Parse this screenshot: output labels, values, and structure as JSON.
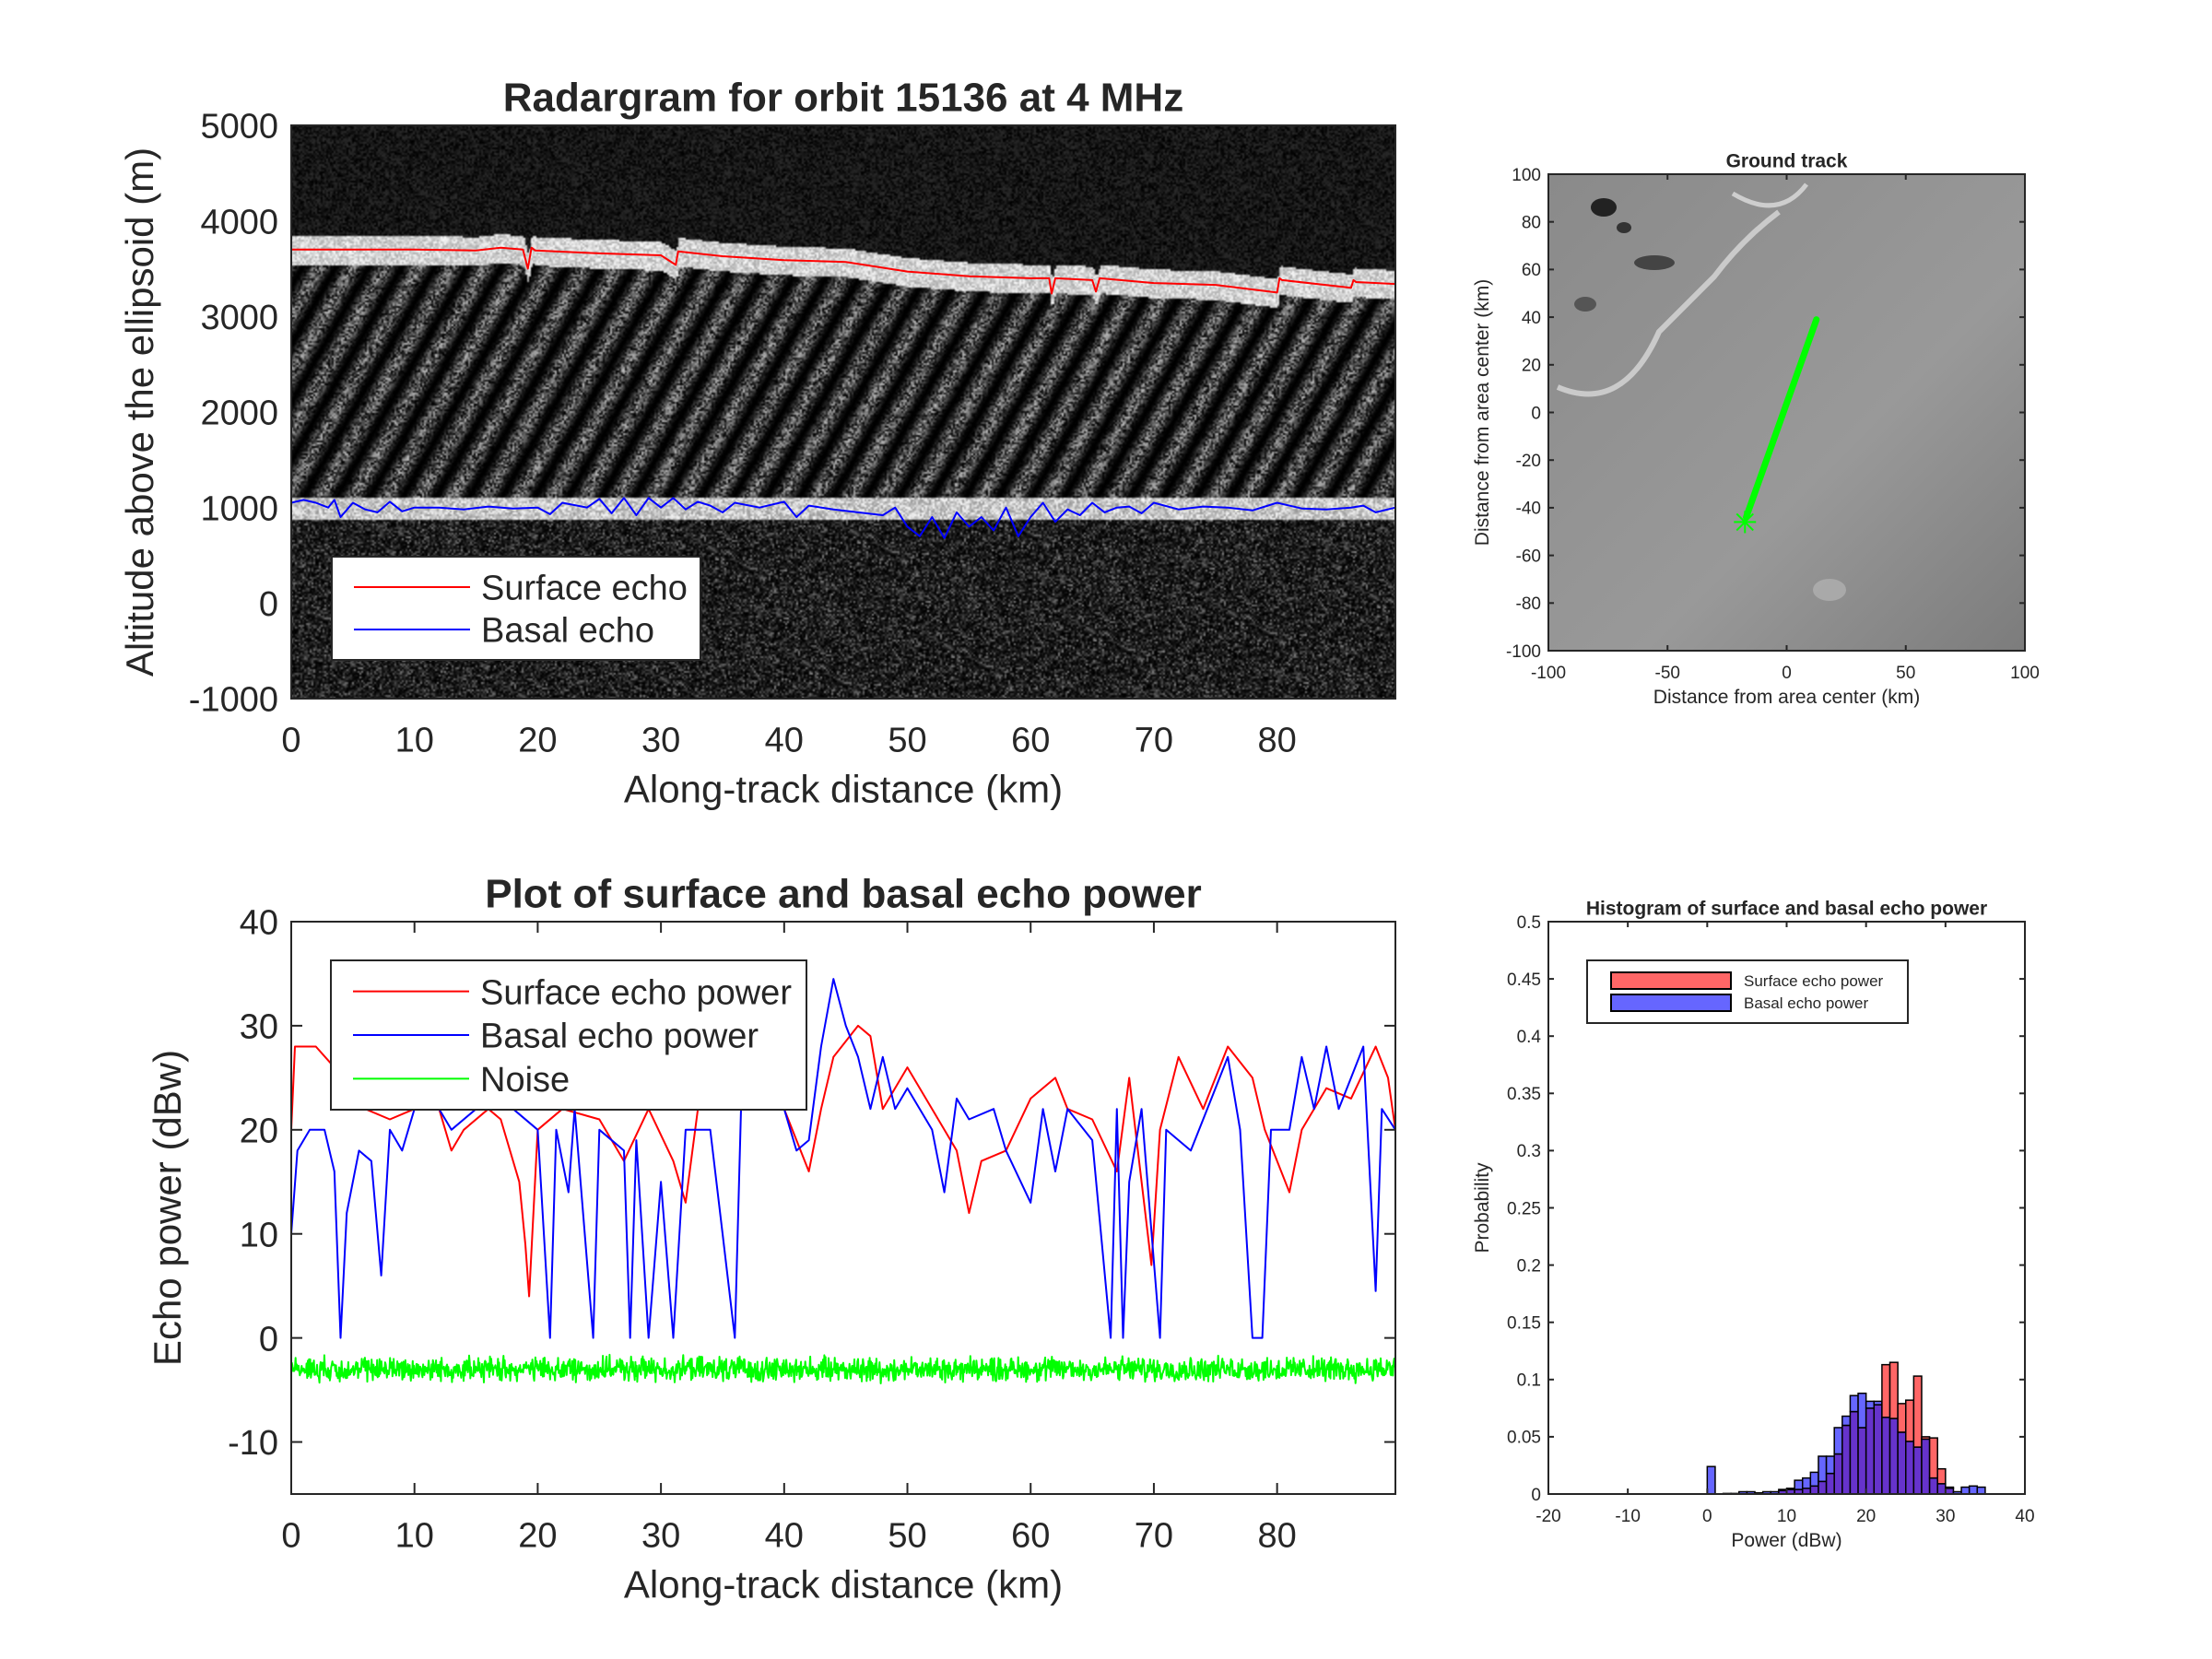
{
  "chart_data": [
    {
      "type": "heatmap",
      "title": "Radargram for orbit 15136 at 4 MHz",
      "xlabel": "Along-track distance (km)",
      "ylabel": "Altitude above the ellipsoid (m)",
      "xlim": [
        0,
        89.6
      ],
      "ylim": [
        -1000,
        5000
      ],
      "xticks": [
        0,
        10,
        20,
        30,
        40,
        50,
        60,
        70,
        80
      ],
      "yticks": [
        -1000,
        0,
        1000,
        2000,
        3000,
        4000,
        5000
      ],
      "legend": {
        "placement": "lower-left",
        "entries": [
          "Surface echo",
          "Basal echo"
        ]
      },
      "series": [
        {
          "name": "Surface echo",
          "color": "#ff0000",
          "x": [
            0,
            5,
            10,
            15,
            17,
            18.8,
            19.2,
            19.5,
            19.8,
            25,
            30,
            31.2,
            31.4,
            35,
            40,
            45,
            50,
            55,
            60,
            61.5,
            61.7,
            62,
            65,
            65.3,
            65.6,
            70,
            75,
            80,
            80.2,
            80.4,
            86,
            86.2,
            86.4,
            89.6
          ],
          "y": [
            3700,
            3700,
            3700,
            3690,
            3720,
            3700,
            3500,
            3720,
            3690,
            3660,
            3640,
            3540,
            3680,
            3630,
            3590,
            3570,
            3470,
            3420,
            3400,
            3400,
            3240,
            3400,
            3380,
            3260,
            3400,
            3350,
            3330,
            3250,
            3400,
            3380,
            3300,
            3380,
            3360,
            3340
          ]
        },
        {
          "name": "Basal echo",
          "color": "#0000ff",
          "x": [
            0,
            1,
            2,
            3,
            3.5,
            4,
            5,
            6,
            7,
            8,
            9,
            10,
            12,
            14,
            16,
            18,
            20,
            21,
            22,
            24,
            25,
            26,
            27,
            28,
            29,
            30,
            31,
            32,
            33,
            34,
            35,
            36,
            38,
            40,
            41,
            42,
            44,
            46,
            48,
            49,
            50,
            51,
            52,
            53,
            54,
            55,
            56,
            57,
            58,
            59,
            60,
            61,
            62,
            63,
            64,
            65,
            66,
            67,
            68,
            69,
            70,
            72,
            74,
            76,
            78,
            80,
            82,
            84,
            86,
            87,
            88,
            89.6
          ],
          "y": [
            1050,
            1080,
            1050,
            1000,
            1080,
            900,
            1050,
            980,
            950,
            1060,
            960,
            1000,
            1000,
            980,
            1010,
            990,
            1000,
            930,
            1050,
            1000,
            1090,
            940,
            1100,
            920,
            1100,
            1000,
            1100,
            980,
            1060,
            1020,
            950,
            1050,
            1000,
            1060,
            900,
            1020,
            980,
            950,
            920,
            1000,
            800,
            700,
            900,
            680,
            950,
            800,
            900,
            760,
            1000,
            700,
            900,
            1050,
            850,
            980,
            920,
            1050,
            950,
            1000,
            1010,
            940,
            1050,
            980,
            1010,
            1000,
            970,
            1050,
            990,
            980,
            1000,
            1020,
            950,
            1000
          ]
        }
      ]
    },
    {
      "type": "line",
      "title": "Ground track",
      "xlabel": "Distance from area center (km)",
      "ylabel": "Distance from area center (km)",
      "xlim": [
        -100,
        100
      ],
      "ylim": [
        -100,
        100
      ],
      "xticks": [
        -100,
        -50,
        0,
        50,
        100
      ],
      "yticks": [
        -100,
        -80,
        -60,
        -40,
        -20,
        0,
        20,
        40,
        60,
        80,
        100
      ],
      "track": {
        "color": "#00ff00",
        "x": [
          -17,
          12.5
        ],
        "y": [
          -44,
          39
        ]
      },
      "start_marker": {
        "symbol": "asterisk",
        "x": -17.5,
        "y": -46
      }
    },
    {
      "type": "line",
      "title": "Plot of surface and basal echo power",
      "xlabel": "Along-track distance (km)",
      "ylabel": "Echo power (dBw)",
      "xlim": [
        0,
        89.6
      ],
      "ylim": [
        -15,
        40
      ],
      "xticks": [
        0,
        10,
        20,
        30,
        40,
        50,
        60,
        70,
        80
      ],
      "yticks": [
        -10,
        0,
        10,
        20,
        30,
        40
      ],
      "legend": {
        "placement": "top-left",
        "entries": [
          "Surface echo power",
          "Basal echo power",
          "Noise"
        ]
      },
      "series": [
        {
          "name": "Surface echo power",
          "color": "#ff0000",
          "x": [
            0,
            0.3,
            2,
            3.5,
            5,
            6,
            8,
            10,
            12,
            13,
            14,
            16,
            17,
            18.5,
            19,
            19.3,
            20,
            22,
            25,
            27,
            29,
            31,
            32,
            33,
            35,
            38,
            40,
            42,
            43,
            44,
            46,
            47,
            48,
            50,
            52,
            54,
            55,
            56,
            58,
            60,
            62,
            63,
            65,
            67,
            68,
            69.5,
            69.8,
            70.5,
            72,
            74,
            76,
            78,
            79,
            81,
            82,
            84,
            86,
            88,
            89,
            89.6
          ],
          "y": [
            20,
            28,
            28,
            26,
            24,
            22,
            21,
            22,
            22,
            18,
            20,
            22,
            21,
            15,
            9,
            4,
            20,
            22,
            21,
            17,
            22,
            17,
            13,
            22,
            22,
            22,
            22,
            16,
            22,
            27,
            30,
            29,
            22,
            26,
            22,
            18,
            12,
            17,
            18,
            23,
            25,
            22,
            21,
            16,
            25,
            10,
            7,
            20,
            27,
            22,
            28,
            25,
            20,
            14,
            20,
            24,
            23,
            28,
            25,
            20
          ]
        },
        {
          "name": "Basal echo power",
          "color": "#0000ff",
          "x": [
            0,
            0.5,
            1.5,
            2.7,
            3.5,
            4,
            4.5,
            5.5,
            6.5,
            7.3,
            8,
            9,
            10,
            12,
            13,
            15,
            16,
            18,
            20,
            21,
            21.5,
            22.5,
            23,
            24.5,
            25,
            27,
            27.5,
            28,
            29,
            30,
            31,
            32,
            34,
            35,
            36,
            36.5,
            38,
            40,
            41,
            42,
            43,
            44,
            45,
            46,
            47,
            48,
            49,
            50,
            52,
            53,
            54,
            55,
            57,
            58,
            60,
            61,
            62,
            63,
            65,
            66.5,
            67,
            67.5,
            68,
            69,
            70.5,
            71,
            73,
            75,
            76,
            77,
            78,
            78.8,
            79.5,
            81,
            82,
            83,
            84,
            85,
            86,
            87,
            88,
            88.5,
            89.6
          ],
          "y": [
            10,
            18,
            20,
            20,
            16,
            0,
            12,
            18,
            17,
            6,
            20,
            18,
            22,
            22,
            20,
            22,
            25,
            22,
            20,
            0,
            20,
            14,
            22,
            0,
            20,
            18,
            0,
            19,
            0,
            15,
            0,
            20,
            20,
            10,
            0,
            22,
            22,
            22,
            18,
            19,
            28,
            34.5,
            30,
            27,
            22,
            27,
            22,
            24,
            20,
            14,
            23,
            21,
            22,
            18,
            13,
            22,
            16,
            22,
            19,
            0,
            22,
            0,
            15,
            22,
            0,
            20,
            18,
            24,
            27,
            20,
            0,
            0,
            20,
            20,
            27,
            22,
            28,
            22,
            25,
            28,
            4.5,
            22,
            20
          ]
        },
        {
          "name": "Noise",
          "color": "#00ff00",
          "mean": -3,
          "spread": 1
        }
      ]
    },
    {
      "type": "bar",
      "title": "Histogram of surface and basal echo power",
      "xlabel": "Power (dBw)",
      "ylabel": "Probability",
      "xlim": [
        -20,
        40
      ],
      "ylim": [
        0,
        0.5
      ],
      "xticks": [
        -20,
        -10,
        0,
        10,
        20,
        30,
        40
      ],
      "yticks": [
        0,
        0.05,
        0.1,
        0.15,
        0.2,
        0.25,
        0.3,
        0.35,
        0.4,
        0.45,
        0.5
      ],
      "bin_width": 1,
      "legend": {
        "placement": "top-left",
        "entries": [
          "Surface echo power",
          "Basal echo power"
        ]
      },
      "series": [
        {
          "name": "Surface echo power",
          "color": "#ff6666",
          "bin_starts": [
            9,
            10,
            11,
            12,
            13,
            14,
            15,
            16,
            17,
            18,
            19,
            20,
            21,
            22,
            23,
            24,
            25,
            26,
            27,
            28,
            29,
            30
          ],
          "values": [
            0.003,
            0.004,
            0.004,
            0.005,
            0.007,
            0.011,
            0.018,
            0.035,
            0.06,
            0.072,
            0.058,
            0.075,
            0.078,
            0.113,
            0.115,
            0.079,
            0.082,
            0.103,
            0.05,
            0.049,
            0.022,
            0.005
          ]
        },
        {
          "name": "Basal echo power",
          "color": "#6666ff",
          "bin_starts": [
            0,
            2,
            3,
            4,
            5,
            6,
            7,
            8,
            9,
            10,
            11,
            12,
            13,
            14,
            15,
            16,
            17,
            18,
            19,
            20,
            21,
            22,
            23,
            24,
            25,
            26,
            27,
            28,
            29,
            30,
            31,
            32,
            33,
            34
          ],
          "values": [
            0.024,
            0.0005,
            0.0005,
            0.002,
            0.002,
            0.001,
            0.002,
            0.002,
            0.004,
            0.005,
            0.012,
            0.014,
            0.019,
            0.033,
            0.033,
            0.058,
            0.068,
            0.086,
            0.088,
            0.081,
            0.081,
            0.067,
            0.066,
            0.054,
            0.046,
            0.041,
            0.048,
            0.014,
            0.009,
            0.006,
            0.002,
            0.006,
            0.007,
            0.006
          ]
        }
      ]
    }
  ]
}
